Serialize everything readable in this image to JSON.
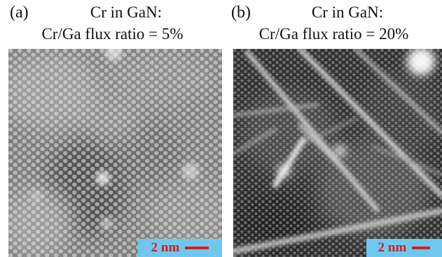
{
  "panels": [
    {
      "label": "(a)",
      "title_line1": "Cr in GaN:",
      "title_line2": "Cr/Ga flux ratio = 5%",
      "scalebar": "2 nm"
    },
    {
      "label": "(b)",
      "title_line1": "Cr in GaN:",
      "title_line2": "Cr/Ga flux ratio = 20%",
      "scalebar": "2 nm"
    }
  ],
  "colors": {
    "scalebar_background": "#6fc7ee",
    "scalebar_text": "#d42020"
  }
}
